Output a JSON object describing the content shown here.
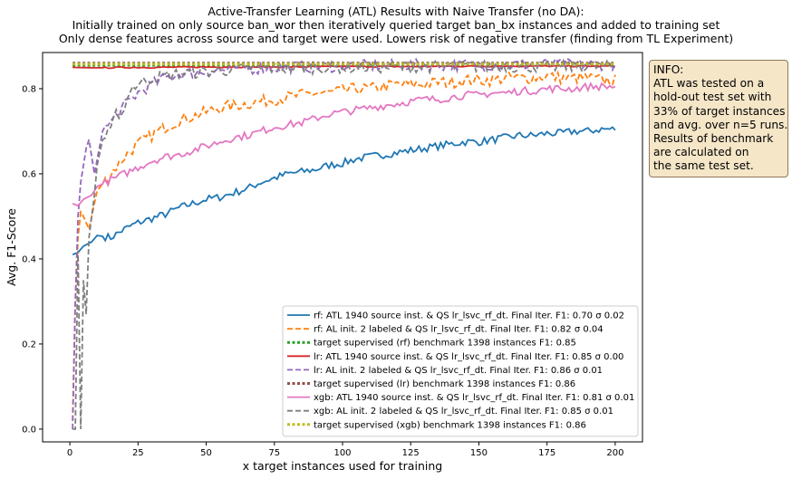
{
  "chart_data": {
    "type": "line",
    "title_lines": [
      "Active-Transfer Learning (ATL) Results with Naive Transfer (no DA):",
      "Initially trained on only source ban_wor then iteratively queried target ban_bx instances and added to training set",
      "Only dense features across source and target were used. Lowers risk of negative transfer (finding from TL Experiment)"
    ],
    "xlabel": "x target instances used for training",
    "ylabel": "Avg. F1-Score",
    "xlim": [
      -10,
      210
    ],
    "ylim": [
      -0.03,
      0.885
    ],
    "xticks": [
      0,
      25,
      50,
      75,
      100,
      125,
      150,
      175,
      200
    ],
    "yticks": [
      0.0,
      0.2,
      0.4,
      0.6,
      0.8
    ],
    "ytick_labels": [
      "0.0",
      "0.2",
      "0.4",
      "0.6",
      "0.8"
    ],
    "grid": false,
    "legend_position": "lower-right",
    "x_range": [
      1,
      200
    ],
    "series": [
      {
        "label": "rf: ATL 1940 source inst. & QS lr_lsvc_rf_dt. Final Iter. F1: 0.70 σ 0.02",
        "color": "#1f77b4",
        "style": "solid",
        "points": [
          [
            1,
            0.41
          ],
          [
            3,
            0.415
          ],
          [
            5,
            0.43
          ],
          [
            8,
            0.44
          ],
          [
            10,
            0.455
          ],
          [
            15,
            0.45
          ],
          [
            20,
            0.47
          ],
          [
            25,
            0.485
          ],
          [
            30,
            0.495
          ],
          [
            35,
            0.505
          ],
          [
            40,
            0.52
          ],
          [
            45,
            0.53
          ],
          [
            50,
            0.54
          ],
          [
            55,
            0.545
          ],
          [
            60,
            0.555
          ],
          [
            65,
            0.565
          ],
          [
            70,
            0.58
          ],
          [
            75,
            0.59
          ],
          [
            80,
            0.6
          ],
          [
            85,
            0.605
          ],
          [
            90,
            0.61
          ],
          [
            95,
            0.62
          ],
          [
            100,
            0.625
          ],
          [
            105,
            0.635
          ],
          [
            110,
            0.64
          ],
          [
            115,
            0.645
          ],
          [
            120,
            0.65
          ],
          [
            125,
            0.655
          ],
          [
            130,
            0.66
          ],
          [
            135,
            0.665
          ],
          [
            140,
            0.67
          ],
          [
            145,
            0.675
          ],
          [
            150,
            0.675
          ],
          [
            155,
            0.68
          ],
          [
            160,
            0.685
          ],
          [
            165,
            0.69
          ],
          [
            170,
            0.69
          ],
          [
            175,
            0.695
          ],
          [
            180,
            0.695
          ],
          [
            185,
            0.7
          ],
          [
            190,
            0.7
          ],
          [
            195,
            0.705
          ],
          [
            200,
            0.705
          ]
        ]
      },
      {
        "label": "rf: AL init. 2 labeled & QS lr_lsvc_rf_dt. Final Iter. F1: 0.82 σ 0.04",
        "color": "#ff7f0e",
        "style": "dashed",
        "points": [
          [
            1,
            0.02
          ],
          [
            2,
            0.3
          ],
          [
            3,
            0.45
          ],
          [
            4,
            0.51
          ],
          [
            5,
            0.5
          ],
          [
            7,
            0.47
          ],
          [
            10,
            0.56
          ],
          [
            15,
            0.6
          ],
          [
            20,
            0.64
          ],
          [
            25,
            0.67
          ],
          [
            30,
            0.69
          ],
          [
            35,
            0.71
          ],
          [
            40,
            0.725
          ],
          [
            45,
            0.735
          ],
          [
            50,
            0.745
          ],
          [
            55,
            0.755
          ],
          [
            60,
            0.76
          ],
          [
            65,
            0.765
          ],
          [
            70,
            0.77
          ],
          [
            75,
            0.775
          ],
          [
            80,
            0.78
          ],
          [
            85,
            0.785
          ],
          [
            90,
            0.79
          ],
          [
            95,
            0.79
          ],
          [
            100,
            0.795
          ],
          [
            105,
            0.8
          ],
          [
            110,
            0.8
          ],
          [
            115,
            0.805
          ],
          [
            120,
            0.81
          ],
          [
            125,
            0.81
          ],
          [
            130,
            0.81
          ],
          [
            135,
            0.815
          ],
          [
            140,
            0.815
          ],
          [
            145,
            0.82
          ],
          [
            150,
            0.82
          ],
          [
            155,
            0.82
          ],
          [
            160,
            0.825
          ],
          [
            165,
            0.825
          ],
          [
            170,
            0.825
          ],
          [
            175,
            0.83
          ],
          [
            180,
            0.825
          ],
          [
            185,
            0.825
          ],
          [
            190,
            0.825
          ],
          [
            195,
            0.82
          ],
          [
            200,
            0.82
          ]
        ]
      },
      {
        "label": "target supervised (rf) benchmark 1398 instances F1: 0.85",
        "color": "#2ca02c",
        "style": "dotted",
        "points": [
          [
            1,
            0.855
          ],
          [
            200,
            0.855
          ]
        ]
      },
      {
        "label": "lr: ATL 1940 source inst. & QS lr_lsvc_rf_dt. Final Iter. F1: 0.85 σ 0.00",
        "color": "#d62728",
        "style": "solid",
        "points": [
          [
            1,
            0.85
          ],
          [
            10,
            0.849
          ],
          [
            20,
            0.85
          ],
          [
            30,
            0.85
          ],
          [
            50,
            0.851
          ],
          [
            75,
            0.851
          ],
          [
            100,
            0.852
          ],
          [
            125,
            0.852
          ],
          [
            150,
            0.853
          ],
          [
            175,
            0.853
          ],
          [
            200,
            0.853
          ]
        ]
      },
      {
        "label": "lr: AL init. 2 labeled & QS lr_lsvc_rf_dt. Final Iter. F1: 0.86 σ 0.01",
        "color": "#9467bd",
        "style": "dashed",
        "points": [
          [
            1,
            0.0
          ],
          [
            2,
            0.3
          ],
          [
            3,
            0.5
          ],
          [
            4,
            0.58
          ],
          [
            5,
            0.62
          ],
          [
            6,
            0.66
          ],
          [
            7,
            0.68
          ],
          [
            9,
            0.6
          ],
          [
            12,
            0.7
          ],
          [
            15,
            0.72
          ],
          [
            20,
            0.76
          ],
          [
            25,
            0.79
          ],
          [
            30,
            0.81
          ],
          [
            35,
            0.825
          ],
          [
            40,
            0.835
          ],
          [
            50,
            0.84
          ],
          [
            60,
            0.845
          ],
          [
            75,
            0.85
          ],
          [
            100,
            0.853
          ],
          [
            125,
            0.855
          ],
          [
            150,
            0.856
          ],
          [
            175,
            0.857
          ],
          [
            200,
            0.857
          ]
        ]
      },
      {
        "label": "target supervised (lr) benchmark 1398 instances F1: 0.86",
        "color": "#8c564b",
        "style": "dotted",
        "points": [
          [
            1,
            0.86
          ],
          [
            200,
            0.86
          ]
        ]
      },
      {
        "label": "xgb: ATL 1940 source inst. & QS lr_lsvc_rf_dt. Final Iter. F1: 0.81 σ 0.01",
        "color": "#e377c2",
        "style": "solid",
        "points": [
          [
            1,
            0.53
          ],
          [
            3,
            0.525
          ],
          [
            5,
            0.54
          ],
          [
            8,
            0.55
          ],
          [
            10,
            0.57
          ],
          [
            15,
            0.585
          ],
          [
            20,
            0.6
          ],
          [
            25,
            0.615
          ],
          [
            30,
            0.63
          ],
          [
            35,
            0.64
          ],
          [
            40,
            0.645
          ],
          [
            45,
            0.655
          ],
          [
            50,
            0.665
          ],
          [
            55,
            0.675
          ],
          [
            60,
            0.685
          ],
          [
            65,
            0.69
          ],
          [
            70,
            0.7
          ],
          [
            75,
            0.71
          ],
          [
            80,
            0.715
          ],
          [
            85,
            0.72
          ],
          [
            90,
            0.73
          ],
          [
            95,
            0.74
          ],
          [
            100,
            0.745
          ],
          [
            105,
            0.75
          ],
          [
            110,
            0.755
          ],
          [
            115,
            0.76
          ],
          [
            120,
            0.765
          ],
          [
            125,
            0.77
          ],
          [
            130,
            0.775
          ],
          [
            135,
            0.775
          ],
          [
            140,
            0.78
          ],
          [
            145,
            0.785
          ],
          [
            150,
            0.785
          ],
          [
            155,
            0.79
          ],
          [
            160,
            0.79
          ],
          [
            165,
            0.795
          ],
          [
            170,
            0.795
          ],
          [
            175,
            0.8
          ],
          [
            180,
            0.8
          ],
          [
            185,
            0.8
          ],
          [
            190,
            0.805
          ],
          [
            195,
            0.805
          ],
          [
            200,
            0.805
          ]
        ]
      },
      {
        "label": "xgb: AL init. 2 labeled & QS lr_lsvc_rf_dt. Final Iter. F1: 0.85 σ 0.01",
        "color": "#7f7f7f",
        "style": "dashed",
        "points": [
          [
            1,
            0.0
          ],
          [
            2,
            0.0
          ],
          [
            3,
            0.42
          ],
          [
            4,
            0.0
          ],
          [
            5,
            0.35
          ],
          [
            6,
            0.27
          ],
          [
            7,
            0.45
          ],
          [
            9,
            0.55
          ],
          [
            10,
            0.62
          ],
          [
            12,
            0.68
          ],
          [
            15,
            0.7
          ],
          [
            17,
            0.74
          ],
          [
            20,
            0.75
          ],
          [
            22,
            0.8
          ],
          [
            25,
            0.81
          ],
          [
            30,
            0.825
          ],
          [
            35,
            0.83
          ],
          [
            40,
            0.835
          ],
          [
            50,
            0.84
          ],
          [
            60,
            0.845
          ],
          [
            75,
            0.848
          ],
          [
            100,
            0.85
          ],
          [
            125,
            0.851
          ],
          [
            150,
            0.852
          ],
          [
            175,
            0.852
          ],
          [
            200,
            0.852
          ]
        ]
      },
      {
        "label": "target supervised (xgb) benchmark 1398 instances F1: 0.86",
        "color": "#bcbd22",
        "style": "dotted",
        "points": [
          [
            1,
            0.858
          ],
          [
            200,
            0.858
          ]
        ]
      }
    ]
  },
  "info_box": {
    "lines": [
      "INFO:",
      "ATL was tested on a",
      "hold-out test set with",
      "33% of target instances",
      "and avg. over n=5 runs.",
      "Results of benchmark",
      "are calculated on",
      "the same test set."
    ]
  }
}
